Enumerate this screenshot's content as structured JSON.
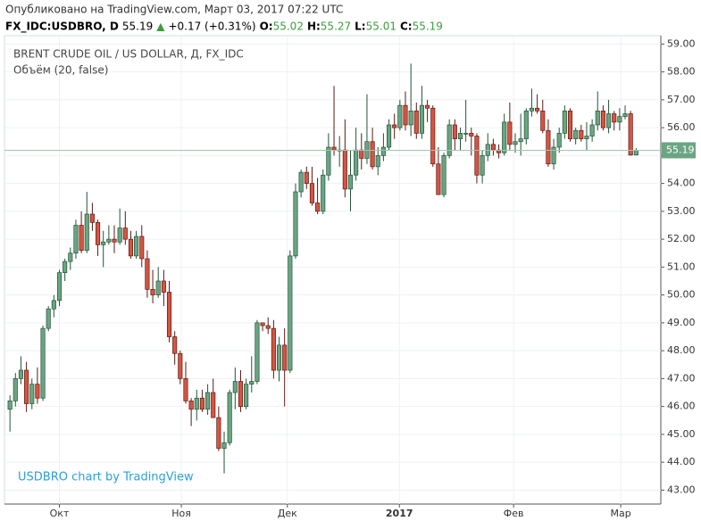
{
  "header": {
    "published": "Опубликовано на TradingView.com, Март 03, 2017 07:22 UTC",
    "symbol": "FX_IDC:USDBRO, D",
    "last": "55.19",
    "arrow": "▲",
    "change": "+0.17 (+0.31%)",
    "ohlc": [
      {
        "label": "O:",
        "value": "55.02"
      },
      {
        "label": "H:",
        "value": "55.27"
      },
      {
        "label": "L:",
        "value": "55.01"
      },
      {
        "label": "C:",
        "value": "55.19"
      }
    ]
  },
  "chart_data": {
    "type": "candlestick",
    "title": "BRENT CRUDE OIL / US DOLLAR, Д, FX_IDC",
    "subtitle": "Объём (20, false)",
    "annotation": "USDBRO chart by TradingView",
    "up_color": "#6ba583",
    "up_border": "#225437",
    "down_color": "#d75442",
    "down_border": "#5b1a13",
    "grid": true,
    "ylim": [
      42.5,
      59.3
    ],
    "yticks": [
      {
        "value": 43,
        "label": "43.00"
      },
      {
        "value": 44,
        "label": "44.00"
      },
      {
        "value": 45,
        "label": "45.00"
      },
      {
        "value": 46,
        "label": "46.00"
      },
      {
        "value": 47,
        "label": "47.00"
      },
      {
        "value": 48,
        "label": "48.00"
      },
      {
        "value": 49,
        "label": "49.00"
      },
      {
        "value": 50,
        "label": "50.00"
      },
      {
        "value": 51,
        "label": "51.00"
      },
      {
        "value": 52,
        "label": "52.00"
      },
      {
        "value": 53,
        "label": "53.00"
      },
      {
        "value": 54,
        "label": "54.00"
      },
      {
        "value": 55,
        "label": "55.00"
      },
      {
        "value": 56,
        "label": "56.00"
      },
      {
        "value": 57,
        "label": "57.00"
      },
      {
        "value": 58,
        "label": "58.00"
      },
      {
        "value": 59,
        "label": "59.00"
      }
    ],
    "xlim": [
      -1,
      118.5
    ],
    "xticks": [
      {
        "value": 9,
        "label": "Окт"
      },
      {
        "value": 31.2,
        "label": "Ноя"
      },
      {
        "value": 50.5,
        "label": "Дек"
      },
      {
        "value": 70.9,
        "label": "2017"
      },
      {
        "value": 91.7,
        "label": "Фев"
      },
      {
        "value": 111.2,
        "label": "Мар"
      }
    ],
    "candles": [
      [
        45.9,
        46.4,
        45.1,
        46.2
      ],
      [
        46.2,
        47.2,
        46.0,
        47.0
      ],
      [
        47.0,
        47.8,
        46.8,
        47.3
      ],
      [
        47.3,
        47.6,
        45.8,
        46.1
      ],
      [
        46.1,
        47.0,
        45.9,
        46.8
      ],
      [
        46.8,
        47.4,
        46.1,
        46.3
      ],
      [
        46.3,
        48.9,
        46.2,
        48.8
      ],
      [
        48.8,
        49.6,
        48.7,
        49.5
      ],
      [
        49.5,
        50.0,
        49.2,
        49.8
      ],
      [
        49.8,
        50.9,
        49.6,
        50.8
      ],
      [
        50.8,
        51.3,
        50.5,
        51.2
      ],
      [
        51.2,
        51.7,
        50.9,
        51.5
      ],
      [
        51.5,
        52.7,
        51.3,
        52.5
      ],
      [
        52.5,
        53.0,
        51.5,
        51.6
      ],
      [
        51.6,
        53.7,
        51.5,
        52.9
      ],
      [
        52.9,
        53.3,
        52.3,
        52.6
      ],
      [
        52.6,
        52.7,
        51.4,
        51.8
      ],
      [
        51.8,
        52.3,
        51.0,
        51.9
      ],
      [
        51.9,
        52.5,
        51.8,
        52.0
      ],
      [
        52.0,
        52.5,
        51.5,
        51.9
      ],
      [
        51.9,
        53.1,
        51.8,
        52.4
      ],
      [
        52.4,
        53.0,
        51.8,
        52.0
      ],
      [
        52.0,
        52.3,
        51.3,
        51.4
      ],
      [
        51.4,
        52.3,
        51.3,
        52.1
      ],
      [
        52.1,
        52.5,
        51.0,
        51.3
      ],
      [
        51.3,
        51.6,
        49.9,
        50.2
      ],
      [
        50.2,
        50.9,
        49.7,
        50.0
      ],
      [
        50.0,
        51.0,
        49.9,
        50.5
      ],
      [
        50.5,
        50.9,
        49.6,
        50.1
      ],
      [
        50.1,
        50.5,
        48.3,
        48.5
      ],
      [
        48.5,
        48.7,
        47.5,
        47.9
      ],
      [
        47.9,
        48.0,
        46.8,
        47.0
      ],
      [
        47.0,
        47.6,
        46.1,
        46.2
      ],
      [
        46.2,
        46.3,
        45.3,
        45.9
      ],
      [
        45.9,
        46.6,
        45.5,
        46.3
      ],
      [
        46.3,
        46.6,
        45.8,
        45.9
      ],
      [
        45.9,
        46.8,
        45.7,
        46.5
      ],
      [
        46.5,
        47.0,
        45.6,
        45.6
      ],
      [
        45.6,
        46.0,
        44.4,
        44.5
      ],
      [
        44.5,
        45.1,
        43.6,
        44.7
      ],
      [
        44.7,
        46.6,
        44.6,
        46.5
      ],
      [
        46.5,
        47.4,
        45.9,
        46.9
      ],
      [
        46.9,
        47.3,
        45.8,
        46.0
      ],
      [
        46.0,
        47.0,
        45.9,
        46.8
      ],
      [
        46.8,
        47.8,
        46.5,
        46.9
      ],
      [
        46.9,
        49.1,
        46.8,
        49.0
      ],
      [
        49.0,
        49.0,
        48.7,
        48.9
      ],
      [
        48.9,
        49.2,
        48.6,
        48.8
      ],
      [
        48.8,
        49.1,
        47.0,
        47.3
      ],
      [
        47.3,
        48.5,
        46.9,
        48.2
      ],
      [
        48.2,
        48.8,
        46.0,
        47.3
      ],
      [
        47.3,
        51.6,
        47.2,
        51.4
      ],
      [
        51.4,
        54.0,
        51.3,
        53.7
      ],
      [
        53.7,
        54.5,
        53.5,
        54.4
      ],
      [
        54.4,
        54.6,
        53.8,
        54.0
      ],
      [
        54.0,
        54.6,
        53.2,
        53.3
      ],
      [
        53.3,
        54.2,
        52.9,
        53.0
      ],
      [
        53.0,
        54.5,
        52.9,
        54.3
      ],
      [
        54.3,
        55.8,
        54.1,
        55.3
      ],
      [
        55.3,
        57.5,
        55.0,
        55.2
      ],
      [
        55.2,
        55.7,
        54.6,
        55.2
      ],
      [
        55.2,
        56.3,
        53.5,
        53.8
      ],
      [
        53.8,
        55.2,
        53.0,
        54.3
      ],
      [
        54.3,
        56.0,
        54.1,
        55.2
      ],
      [
        55.2,
        55.8,
        54.5,
        54.9
      ],
      [
        54.9,
        57.2,
        54.7,
        55.5
      ],
      [
        55.5,
        56.0,
        54.5,
        54.6
      ],
      [
        54.6,
        55.3,
        54.3,
        55.0
      ],
      [
        55.0,
        55.8,
        54.8,
        55.3
      ],
      [
        55.3,
        56.3,
        55.2,
        56.1
      ],
      [
        56.1,
        56.5,
        55.6,
        56.0
      ],
      [
        56.0,
        57.0,
        55.9,
        56.8
      ],
      [
        56.8,
        57.3,
        55.9,
        56.1
      ],
      [
        56.1,
        58.3,
        55.7,
        56.6
      ],
      [
        56.6,
        56.9,
        55.6,
        55.8
      ],
      [
        55.8,
        57.5,
        55.6,
        56.8
      ],
      [
        56.8,
        57.0,
        56.2,
        56.7
      ],
      [
        56.7,
        56.8,
        54.6,
        54.7
      ],
      [
        54.7,
        55.3,
        53.6,
        53.6
      ],
      [
        53.6,
        55.1,
        53.5,
        55.0
      ],
      [
        55.0,
        56.3,
        54.9,
        56.1
      ],
      [
        56.1,
        56.3,
        55.2,
        55.6
      ],
      [
        55.6,
        56.0,
        55.2,
        55.8
      ],
      [
        55.8,
        57.0,
        55.5,
        55.8
      ],
      [
        55.8,
        56.0,
        55.0,
        55.7
      ],
      [
        55.7,
        55.8,
        54.0,
        54.3
      ],
      [
        54.3,
        55.2,
        54.0,
        55.0
      ],
      [
        55.0,
        55.8,
        54.8,
        55.4
      ],
      [
        55.4,
        55.6,
        55.0,
        55.2
      ],
      [
        55.2,
        55.4,
        54.9,
        55.1
      ],
      [
        55.1,
        56.5,
        55.0,
        56.2
      ],
      [
        56.2,
        56.9,
        55.2,
        55.4
      ],
      [
        55.4,
        55.8,
        55.1,
        55.5
      ],
      [
        55.5,
        56.5,
        55.0,
        55.6
      ],
      [
        55.6,
        56.7,
        55.4,
        56.6
      ],
      [
        56.6,
        57.4,
        56.4,
        56.7
      ],
      [
        56.7,
        57.2,
        56.5,
        56.6
      ],
      [
        56.6,
        57.0,
        55.8,
        55.9
      ],
      [
        55.9,
        56.3,
        54.6,
        54.7
      ],
      [
        54.7,
        55.6,
        54.5,
        55.3
      ],
      [
        55.3,
        56.0,
        55.1,
        55.8
      ],
      [
        55.8,
        56.8,
        55.6,
        56.6
      ],
      [
        56.6,
        56.7,
        55.5,
        55.6
      ],
      [
        55.6,
        56.0,
        55.4,
        55.9
      ],
      [
        55.9,
        56.1,
        55.5,
        55.6
      ],
      [
        55.6,
        56.2,
        55.2,
        55.7
      ],
      [
        55.7,
        56.3,
        55.5,
        56.1
      ],
      [
        56.1,
        57.3,
        55.9,
        56.6
      ],
      [
        56.6,
        56.8,
        55.9,
        56.0
      ],
      [
        56.0,
        57.0,
        55.8,
        56.5
      ],
      [
        56.5,
        56.6,
        55.9,
        56.2
      ],
      [
        56.2,
        56.7,
        55.9,
        56.4
      ],
      [
        56.4,
        56.8,
        56.3,
        56.5
      ],
      [
        56.5,
        56.6,
        55.0,
        55.02
      ],
      [
        55.02,
        55.27,
        55.01,
        55.19
      ]
    ]
  }
}
